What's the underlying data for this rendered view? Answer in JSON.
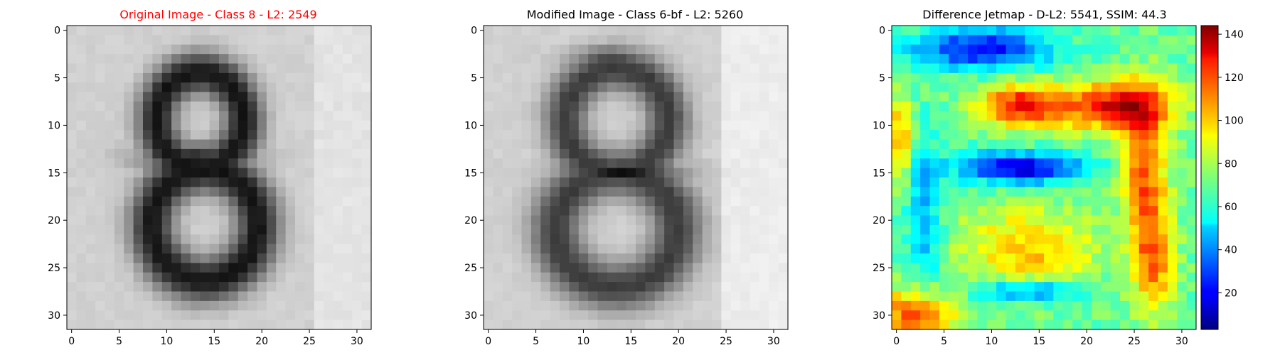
{
  "chart_data": [
    {
      "type": "heatmap",
      "title": "Original Image - Class 8 - L2: 2549",
      "title_color": "#ff0000",
      "colormap": "gray",
      "grid": false,
      "xticks": [
        0,
        5,
        10,
        15,
        20,
        25,
        30
      ],
      "yticks": [
        0,
        5,
        10,
        15,
        20,
        25,
        30
      ],
      "xlim": [
        -0.5,
        31.5
      ],
      "ylim": [
        31.5,
        -0.5
      ],
      "description_shape": [
        32,
        32
      ],
      "digit": "8"
    },
    {
      "type": "heatmap",
      "title": "Modified Image - Class 6-bf - L2: 5260",
      "title_color": "#000000",
      "colormap": "gray",
      "grid": false,
      "xticks": [
        0,
        5,
        10,
        15,
        20,
        25,
        30
      ],
      "yticks": [
        0,
        5,
        10,
        15,
        20,
        25,
        30
      ],
      "xlim": [
        -0.5,
        31.5
      ],
      "ylim": [
        31.5,
        -0.5
      ],
      "description_shape": [
        32,
        32
      ],
      "digit": "8"
    },
    {
      "type": "heatmap",
      "title": "Difference Jetmap - D-L2: 5541, SSIM: 44.3",
      "title_color": "#000000",
      "colormap": "jet",
      "grid": false,
      "xticks": [
        0,
        5,
        10,
        15,
        20,
        25,
        30
      ],
      "yticks": [
        0,
        5,
        10,
        15,
        20,
        25,
        30
      ],
      "xlim": [
        -0.5,
        31.5
      ],
      "ylim": [
        31.5,
        -0.5
      ],
      "colorbar": {
        "ticks": [
          20,
          40,
          60,
          80,
          100,
          120,
          140
        ],
        "range": [
          3,
          144
        ]
      }
    }
  ]
}
